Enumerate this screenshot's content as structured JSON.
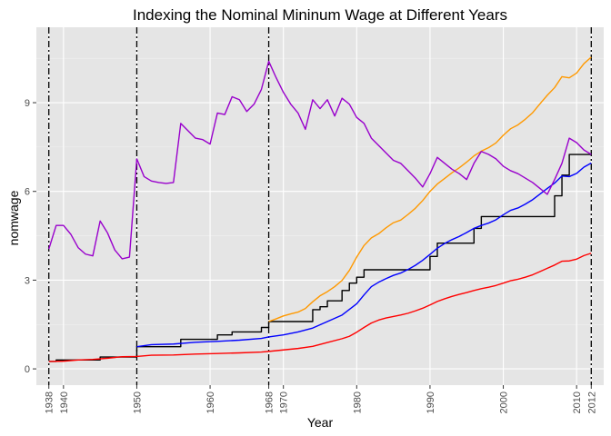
{
  "chart_data": {
    "type": "line",
    "title": "Indexing the Nominal Mininum Wage at Different Years",
    "xlabel": "Year",
    "ylabel": "nomwage",
    "xlim": [
      1936.3,
      2013.7
    ],
    "ylim": [
      -0.55,
      11.55
    ],
    "x_ticks": [
      1938,
      1940,
      1950,
      1960,
      1968,
      1970,
      1980,
      1990,
      2000,
      2010,
      2012
    ],
    "y_ticks": [
      0,
      3,
      6,
      9
    ],
    "grid": true,
    "legend": "none",
    "vlines": [
      1938,
      1950,
      1968,
      2012
    ],
    "colors": {
      "panel_bg": "#e5e5e5",
      "grid_major": "#ffffff",
      "nominal": "#000000",
      "index_1938": "#ff0000",
      "index_1950": "#0000ff",
      "index_1968": "#ff9900",
      "index_2012": "#9900cc"
    },
    "series": [
      {
        "key": "nominal",
        "step": true,
        "points": [
          [
            1938,
            0.25
          ],
          [
            1939,
            0.3
          ],
          [
            1945,
            0.4
          ],
          [
            1950,
            0.75
          ],
          [
            1956,
            1.0
          ],
          [
            1961,
            1.15
          ],
          [
            1963,
            1.25
          ],
          [
            1967,
            1.4
          ],
          [
            1968,
            1.6
          ],
          [
            1974,
            2.0
          ],
          [
            1975,
            2.1
          ],
          [
            1976,
            2.3
          ],
          [
            1978,
            2.65
          ],
          [
            1979,
            2.9
          ],
          [
            1980,
            3.1
          ],
          [
            1981,
            3.35
          ],
          [
            1990,
            3.8
          ],
          [
            1991,
            4.25
          ],
          [
            1996,
            4.75
          ],
          [
            1997,
            5.15
          ],
          [
            2007,
            5.85
          ],
          [
            2008,
            6.55
          ],
          [
            2009,
            7.25
          ],
          [
            2012,
            7.25
          ]
        ]
      },
      {
        "key": "index_1938",
        "points": [
          [
            1938,
            0.25
          ],
          [
            1940,
            0.26
          ],
          [
            1942,
            0.3
          ],
          [
            1944,
            0.32
          ],
          [
            1946,
            0.36
          ],
          [
            1948,
            0.41
          ],
          [
            1950,
            0.42
          ],
          [
            1952,
            0.46
          ],
          [
            1955,
            0.47
          ],
          [
            1958,
            0.5
          ],
          [
            1961,
            0.52
          ],
          [
            1964,
            0.54
          ],
          [
            1967,
            0.57
          ],
          [
            1968,
            0.59
          ],
          [
            1970,
            0.64
          ],
          [
            1972,
            0.69
          ],
          [
            1974,
            0.76
          ],
          [
            1976,
            0.89
          ],
          [
            1978,
            1.02
          ],
          [
            1979,
            1.1
          ],
          [
            1980,
            1.24
          ],
          [
            1981,
            1.4
          ],
          [
            1982,
            1.55
          ],
          [
            1983,
            1.65
          ],
          [
            1984,
            1.72
          ],
          [
            1985,
            1.77
          ],
          [
            1986,
            1.82
          ],
          [
            1987,
            1.88
          ],
          [
            1988,
            1.96
          ],
          [
            1989,
            2.05
          ],
          [
            1990,
            2.16
          ],
          [
            1991,
            2.28
          ],
          [
            1992,
            2.37
          ],
          [
            1993,
            2.45
          ],
          [
            1994,
            2.52
          ],
          [
            1995,
            2.58
          ],
          [
            1996,
            2.65
          ],
          [
            1997,
            2.71
          ],
          [
            1998,
            2.76
          ],
          [
            1999,
            2.82
          ],
          [
            2000,
            2.9
          ],
          [
            2001,
            2.98
          ],
          [
            2002,
            3.03
          ],
          [
            2003,
            3.1
          ],
          [
            2004,
            3.18
          ],
          [
            2005,
            3.29
          ],
          [
            2006,
            3.4
          ],
          [
            2007,
            3.51
          ],
          [
            2008,
            3.64
          ],
          [
            2009,
            3.65
          ],
          [
            2010,
            3.71
          ],
          [
            2011,
            3.83
          ],
          [
            2012,
            3.91
          ]
        ]
      },
      {
        "key": "index_1950",
        "points": [
          [
            1950,
            0.75
          ],
          [
            1952,
            0.82
          ],
          [
            1955,
            0.84
          ],
          [
            1958,
            0.9
          ],
          [
            1961,
            0.93
          ],
          [
            1964,
            0.97
          ],
          [
            1967,
            1.03
          ],
          [
            1968,
            1.08
          ],
          [
            1970,
            1.15
          ],
          [
            1972,
            1.25
          ],
          [
            1974,
            1.38
          ],
          [
            1976,
            1.6
          ],
          [
            1978,
            1.82
          ],
          [
            1980,
            2.2
          ],
          [
            1981,
            2.5
          ],
          [
            1982,
            2.78
          ],
          [
            1983,
            2.93
          ],
          [
            1984,
            3.05
          ],
          [
            1985,
            3.16
          ],
          [
            1986,
            3.24
          ],
          [
            1987,
            3.36
          ],
          [
            1988,
            3.5
          ],
          [
            1989,
            3.67
          ],
          [
            1990,
            3.87
          ],
          [
            1991,
            4.08
          ],
          [
            1992,
            4.24
          ],
          [
            1993,
            4.37
          ],
          [
            1994,
            4.48
          ],
          [
            1995,
            4.61
          ],
          [
            1996,
            4.75
          ],
          [
            1997,
            4.85
          ],
          [
            1998,
            4.93
          ],
          [
            1999,
            5.04
          ],
          [
            2000,
            5.21
          ],
          [
            2001,
            5.36
          ],
          [
            2002,
            5.44
          ],
          [
            2003,
            5.57
          ],
          [
            2004,
            5.72
          ],
          [
            2005,
            5.91
          ],
          [
            2006,
            6.1
          ],
          [
            2007,
            6.28
          ],
          [
            2008,
            6.52
          ],
          [
            2009,
            6.5
          ],
          [
            2010,
            6.61
          ],
          [
            2011,
            6.82
          ],
          [
            2012,
            6.96
          ]
        ]
      },
      {
        "key": "index_1968",
        "points": [
          [
            1968,
            1.6
          ],
          [
            1969,
            1.69
          ],
          [
            1970,
            1.79
          ],
          [
            1971,
            1.86
          ],
          [
            1972,
            1.92
          ],
          [
            1973,
            2.04
          ],
          [
            1974,
            2.27
          ],
          [
            1975,
            2.47
          ],
          [
            1976,
            2.61
          ],
          [
            1977,
            2.78
          ],
          [
            1978,
            2.99
          ],
          [
            1979,
            3.33
          ],
          [
            1980,
            3.78
          ],
          [
            1981,
            4.17
          ],
          [
            1982,
            4.43
          ],
          [
            1983,
            4.57
          ],
          [
            1984,
            4.77
          ],
          [
            1985,
            4.94
          ],
          [
            1986,
            5.03
          ],
          [
            1987,
            5.22
          ],
          [
            1988,
            5.43
          ],
          [
            1989,
            5.69
          ],
          [
            1990,
            6.0
          ],
          [
            1991,
            6.25
          ],
          [
            1992,
            6.44
          ],
          [
            1993,
            6.63
          ],
          [
            1994,
            6.8
          ],
          [
            1995,
            6.99
          ],
          [
            1996,
            7.2
          ],
          [
            1997,
            7.36
          ],
          [
            1998,
            7.48
          ],
          [
            1999,
            7.64
          ],
          [
            2000,
            7.9
          ],
          [
            2001,
            8.12
          ],
          [
            2002,
            8.25
          ],
          [
            2003,
            8.44
          ],
          [
            2004,
            8.66
          ],
          [
            2005,
            8.96
          ],
          [
            2006,
            9.25
          ],
          [
            2007,
            9.51
          ],
          [
            2008,
            9.88
          ],
          [
            2009,
            9.84
          ],
          [
            2010,
            10.0
          ],
          [
            2011,
            10.32
          ],
          [
            2012,
            10.54
          ]
        ]
      },
      {
        "key": "index_2012",
        "points": [
          [
            1938,
            4.05
          ],
          [
            1939,
            4.85
          ],
          [
            1940,
            4.85
          ],
          [
            1941,
            4.55
          ],
          [
            1942,
            4.1
          ],
          [
            1943,
            3.88
          ],
          [
            1944,
            3.82
          ],
          [
            1945,
            5.0
          ],
          [
            1946,
            4.6
          ],
          [
            1947,
            4.02
          ],
          [
            1948,
            3.72
          ],
          [
            1949,
            3.78
          ],
          [
            1950,
            7.1
          ],
          [
            1951,
            6.5
          ],
          [
            1952,
            6.35
          ],
          [
            1953,
            6.3
          ],
          [
            1954,
            6.27
          ],
          [
            1955,
            6.3
          ],
          [
            1956,
            8.3
          ],
          [
            1957,
            8.05
          ],
          [
            1958,
            7.8
          ],
          [
            1959,
            7.75
          ],
          [
            1960,
            7.6
          ],
          [
            1961,
            8.65
          ],
          [
            1962,
            8.6
          ],
          [
            1963,
            9.2
          ],
          [
            1964,
            9.1
          ],
          [
            1965,
            8.7
          ],
          [
            1966,
            8.95
          ],
          [
            1967,
            9.45
          ],
          [
            1968,
            10.4
          ],
          [
            1969,
            9.85
          ],
          [
            1970,
            9.35
          ],
          [
            1971,
            8.95
          ],
          [
            1972,
            8.65
          ],
          [
            1973,
            8.1
          ],
          [
            1974,
            9.1
          ],
          [
            1975,
            8.8
          ],
          [
            1976,
            9.1
          ],
          [
            1977,
            8.55
          ],
          [
            1978,
            9.15
          ],
          [
            1979,
            8.95
          ],
          [
            1980,
            8.5
          ],
          [
            1981,
            8.3
          ],
          [
            1982,
            7.8
          ],
          [
            1983,
            7.55
          ],
          [
            1984,
            7.3
          ],
          [
            1985,
            7.05
          ],
          [
            1986,
            6.95
          ],
          [
            1987,
            6.7
          ],
          [
            1988,
            6.45
          ],
          [
            1989,
            6.15
          ],
          [
            1990,
            6.6
          ],
          [
            1991,
            7.15
          ],
          [
            1992,
            6.95
          ],
          [
            1993,
            6.75
          ],
          [
            1994,
            6.6
          ],
          [
            1995,
            6.4
          ],
          [
            1996,
            6.95
          ],
          [
            1997,
            7.35
          ],
          [
            1998,
            7.25
          ],
          [
            1999,
            7.1
          ],
          [
            2000,
            6.85
          ],
          [
            2001,
            6.7
          ],
          [
            2002,
            6.6
          ],
          [
            2003,
            6.45
          ],
          [
            2004,
            6.3
          ],
          [
            2005,
            6.1
          ],
          [
            2006,
            5.9
          ],
          [
            2007,
            6.4
          ],
          [
            2008,
            6.95
          ],
          [
            2009,
            7.8
          ],
          [
            2010,
            7.65
          ],
          [
            2011,
            7.4
          ],
          [
            2012,
            7.25
          ]
        ]
      }
    ]
  }
}
